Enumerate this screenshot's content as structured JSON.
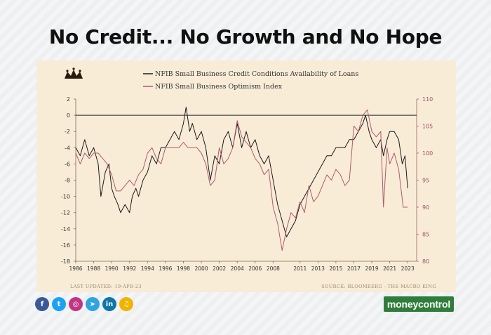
{
  "headline": "No Credit... No Growth and No Hope",
  "footer": {
    "last_updated": "LAST UPDATED:   19-APR-23",
    "source": "SOURCE: BLOOMBERG - THE MACRO KING"
  },
  "brand": {
    "label": "moneycontrol",
    "color": "#2f7d3a"
  },
  "social_icons": [
    {
      "name": "facebook-icon",
      "glyph": "f",
      "color": "#3b5998"
    },
    {
      "name": "twitter-icon",
      "glyph": "t",
      "color": "#1da1f2"
    },
    {
      "name": "instagram-icon",
      "glyph": "◎",
      "color": "#c13584"
    },
    {
      "name": "telegram-icon",
      "glyph": "➤",
      "color": "#2ca5e0"
    },
    {
      "name": "linkedin-icon",
      "glyph": "in",
      "color": "#0e76a8"
    },
    {
      "name": "podcast-icon",
      "glyph": "♫",
      "color": "#f0b400"
    }
  ],
  "chart_data": {
    "type": "line",
    "xlim": [
      1986,
      2024
    ],
    "x_ticks": [
      1986,
      1988,
      1990,
      1992,
      1994,
      1996,
      1998,
      2000,
      2002,
      2004,
      2006,
      2008,
      2011,
      2013,
      2015,
      2017,
      2019,
      2021,
      2023
    ],
    "left_axis": {
      "ylim": [
        -18,
        2
      ],
      "ticks": [
        2,
        0,
        -2,
        -4,
        -6,
        -8,
        -10,
        -12,
        -14,
        -16,
        -18
      ]
    },
    "right_axis": {
      "ylim": [
        80,
        110
      ],
      "ticks": [
        110,
        105,
        100,
        95,
        90,
        85,
        80
      ]
    },
    "reference_line": 0,
    "legend_position": "top-center",
    "series": [
      {
        "name": "NFIB Small Business Credit Conditions Availability of Loans",
        "axis": "left",
        "color": "#1a1a1a",
        "points": [
          [
            1986.0,
            -4
          ],
          [
            1986.5,
            -5
          ],
          [
            1987.0,
            -3
          ],
          [
            1987.5,
            -5
          ],
          [
            1988.0,
            -4
          ],
          [
            1988.5,
            -6
          ],
          [
            1988.8,
            -10
          ],
          [
            1989.3,
            -7
          ],
          [
            1989.7,
            -6
          ],
          [
            1990.0,
            -9
          ],
          [
            1990.3,
            -10
          ],
          [
            1990.7,
            -11
          ],
          [
            1991.0,
            -12
          ],
          [
            1991.5,
            -11
          ],
          [
            1992.0,
            -12
          ],
          [
            1992.3,
            -10
          ],
          [
            1992.7,
            -9
          ],
          [
            1993.0,
            -10
          ],
          [
            1993.5,
            -8
          ],
          [
            1994.0,
            -7
          ],
          [
            1994.5,
            -5
          ],
          [
            1995.0,
            -6
          ],
          [
            1995.5,
            -4
          ],
          [
            1996.0,
            -4
          ],
          [
            1996.5,
            -3
          ],
          [
            1997.0,
            -2
          ],
          [
            1997.5,
            -3
          ],
          [
            1998.0,
            -1
          ],
          [
            1998.3,
            1
          ],
          [
            1998.7,
            -2
          ],
          [
            1999.0,
            -1
          ],
          [
            1999.5,
            -3
          ],
          [
            2000.0,
            -2
          ],
          [
            2000.5,
            -4
          ],
          [
            2001.0,
            -8
          ],
          [
            2001.5,
            -5
          ],
          [
            2002.0,
            -6
          ],
          [
            2002.5,
            -3
          ],
          [
            2003.0,
            -2
          ],
          [
            2003.5,
            -4
          ],
          [
            2004.0,
            -1
          ],
          [
            2004.5,
            -4
          ],
          [
            2005.0,
            -2
          ],
          [
            2005.5,
            -4
          ],
          [
            2006.0,
            -3
          ],
          [
            2006.5,
            -5
          ],
          [
            2007.0,
            -6
          ],
          [
            2007.5,
            -5
          ],
          [
            2008.0,
            -8
          ],
          [
            2008.5,
            -11
          ],
          [
            2009.0,
            -13
          ],
          [
            2009.5,
            -15
          ],
          [
            2010.0,
            -14
          ],
          [
            2010.5,
            -13
          ],
          [
            2011.0,
            -11
          ],
          [
            2011.5,
            -10
          ],
          [
            2012.0,
            -9
          ],
          [
            2012.5,
            -8
          ],
          [
            2013.0,
            -7
          ],
          [
            2013.5,
            -6
          ],
          [
            2014.0,
            -5
          ],
          [
            2014.5,
            -5
          ],
          [
            2015.0,
            -4
          ],
          [
            2015.5,
            -4
          ],
          [
            2016.0,
            -4
          ],
          [
            2016.5,
            -3
          ],
          [
            2017.0,
            -3
          ],
          [
            2017.5,
            -2
          ],
          [
            2018.0,
            -1
          ],
          [
            2018.3,
            0
          ],
          [
            2018.7,
            -2
          ],
          [
            2019.0,
            -3
          ],
          [
            2019.5,
            -4
          ],
          [
            2020.0,
            -3
          ],
          [
            2020.3,
            -5
          ],
          [
            2020.7,
            -3
          ],
          [
            2021.0,
            -2
          ],
          [
            2021.5,
            -2
          ],
          [
            2022.0,
            -3
          ],
          [
            2022.4,
            -6
          ],
          [
            2022.7,
            -5
          ],
          [
            2023.0,
            -9
          ]
        ]
      },
      {
        "name": "NFIB Small Business Optimism Index",
        "axis": "right",
        "color": "#b05a6a",
        "points": [
          [
            1986.0,
            100
          ],
          [
            1986.5,
            98
          ],
          [
            1987.0,
            100
          ],
          [
            1987.5,
            99
          ],
          [
            1988.0,
            100
          ],
          [
            1988.5,
            100
          ],
          [
            1989.0,
            99
          ],
          [
            1989.5,
            98
          ],
          [
            1990.0,
            96
          ],
          [
            1990.5,
            93
          ],
          [
            1991.0,
            93
          ],
          [
            1991.5,
            94
          ],
          [
            1992.0,
            95
          ],
          [
            1992.5,
            94
          ],
          [
            1993.0,
            96
          ],
          [
            1993.5,
            97
          ],
          [
            1994.0,
            100
          ],
          [
            1994.5,
            101
          ],
          [
            1995.0,
            99
          ],
          [
            1995.5,
            98
          ],
          [
            1996.0,
            101
          ],
          [
            1996.5,
            101
          ],
          [
            1997.0,
            101
          ],
          [
            1997.5,
            101
          ],
          [
            1998.0,
            102
          ],
          [
            1998.5,
            101
          ],
          [
            1999.0,
            101
          ],
          [
            1999.5,
            101
          ],
          [
            2000.0,
            100
          ],
          [
            2000.5,
            98
          ],
          [
            2001.0,
            94
          ],
          [
            2001.5,
            95
          ],
          [
            2002.0,
            101
          ],
          [
            2002.5,
            98
          ],
          [
            2003.0,
            99
          ],
          [
            2003.5,
            101
          ],
          [
            2004.0,
            106
          ],
          [
            2004.5,
            103
          ],
          [
            2005.0,
            102
          ],
          [
            2005.5,
            101
          ],
          [
            2006.0,
            99
          ],
          [
            2006.5,
            98
          ],
          [
            2007.0,
            96
          ],
          [
            2007.5,
            97
          ],
          [
            2008.0,
            90
          ],
          [
            2008.5,
            87
          ],
          [
            2009.0,
            82
          ],
          [
            2009.5,
            86
          ],
          [
            2010.0,
            89
          ],
          [
            2010.5,
            88
          ],
          [
            2011.0,
            91
          ],
          [
            2011.5,
            89
          ],
          [
            2012.0,
            94
          ],
          [
            2012.5,
            91
          ],
          [
            2013.0,
            92
          ],
          [
            2013.5,
            94
          ],
          [
            2014.0,
            96
          ],
          [
            2014.5,
            95
          ],
          [
            2015.0,
            97
          ],
          [
            2015.5,
            96
          ],
          [
            2016.0,
            94
          ],
          [
            2016.5,
            95
          ],
          [
            2017.0,
            105
          ],
          [
            2017.5,
            104
          ],
          [
            2018.0,
            107
          ],
          [
            2018.5,
            108
          ],
          [
            2019.0,
            104
          ],
          [
            2019.5,
            103
          ],
          [
            2020.0,
            104
          ],
          [
            2020.3,
            90
          ],
          [
            2020.7,
            101
          ],
          [
            2021.0,
            98
          ],
          [
            2021.5,
            100
          ],
          [
            2022.0,
            97
          ],
          [
            2022.5,
            90
          ],
          [
            2023.0,
            90
          ]
        ]
      }
    ]
  }
}
